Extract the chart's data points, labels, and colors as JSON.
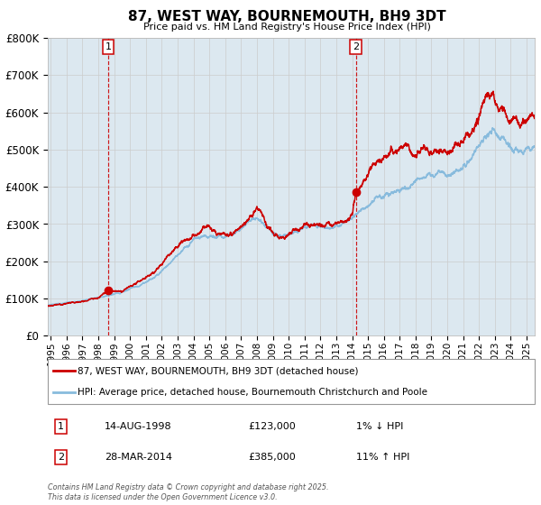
{
  "title": "87, WEST WAY, BOURNEMOUTH, BH9 3DT",
  "subtitle": "Price paid vs. HM Land Registry's House Price Index (HPI)",
  "ylim": [
    0,
    800000
  ],
  "yticks": [
    0,
    100000,
    200000,
    300000,
    400000,
    500000,
    600000,
    700000,
    800000
  ],
  "xstart": 1994.8,
  "xend": 2025.5,
  "xticks": [
    1995,
    1996,
    1997,
    1998,
    1999,
    2000,
    2001,
    2002,
    2003,
    2004,
    2005,
    2006,
    2007,
    2008,
    2009,
    2010,
    2011,
    2012,
    2013,
    2014,
    2015,
    2016,
    2017,
    2018,
    2019,
    2020,
    2021,
    2022,
    2023,
    2024,
    2025
  ],
  "sale1_x": 1998.617,
  "sale1_y": 123000,
  "sale2_x": 2014.24,
  "sale2_y": 385000,
  "sale1_label": "1",
  "sale2_label": "2",
  "red_color": "#cc0000",
  "blue_color": "#88bbdd",
  "shade_color": "#dce8f0",
  "vline_color": "#cc0000",
  "point_color": "#cc0000",
  "bg_color": "#ffffff",
  "grid_color": "#cccccc",
  "legend1": "87, WEST WAY, BOURNEMOUTH, BH9 3DT (detached house)",
  "legend2": "HPI: Average price, detached house, Bournemouth Christchurch and Poole",
  "annot1_date": "14-AUG-1998",
  "annot1_price": "£123,000",
  "annot1_hpi": "1% ↓ HPI",
  "annot2_date": "28-MAR-2014",
  "annot2_price": "£385,000",
  "annot2_hpi": "11% ↑ HPI",
  "footer": "Contains HM Land Registry data © Crown copyright and database right 2025.\nThis data is licensed under the Open Government Licence v3.0."
}
